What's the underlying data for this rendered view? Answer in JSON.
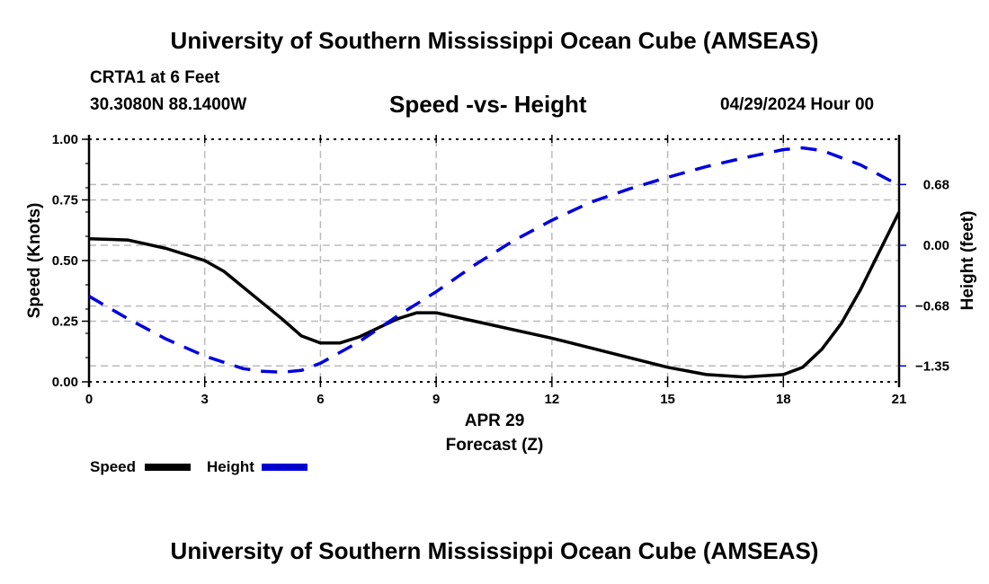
{
  "header": {
    "main_title": "University of Southern Mississippi Ocean Cube (AMSEAS)",
    "station": "CRTA1 at 6 Feet",
    "coordinates": "30.3080N  88.1400W",
    "plot_title": "Speed -vs- Height",
    "date": "04/29/2024 Hour 00"
  },
  "footer": {
    "bottom_title": "University of Southern Mississippi Ocean Cube (AMSEAS)"
  },
  "colors": {
    "speed": "#000000",
    "height": "#0000dd",
    "grid": "#bbbbbb"
  },
  "chart_data": {
    "type": "line",
    "title": "Speed -vs- Height",
    "xlabel": "Forecast (Z)",
    "xlabel_date": "APR 29",
    "ylabel": "Speed (Knots)",
    "y2label": "Height (feet)",
    "xlim": [
      0,
      21
    ],
    "ylim": [
      0,
      1.0
    ],
    "y2lim": [
      -1.528,
      1.186
    ],
    "x_ticks": [
      0,
      3,
      6,
      9,
      12,
      15,
      18,
      21
    ],
    "x_tick_labels": [
      "0",
      "3",
      "6",
      "9",
      "12",
      "15",
      "18",
      "21"
    ],
    "y_ticks": [
      0.0,
      0.25,
      0.5,
      0.75,
      1.0
    ],
    "y_tick_labels": [
      "0.00",
      "0.25",
      "0.50",
      "0.75",
      "1.00"
    ],
    "y2_ticks": [
      0.68,
      0.0,
      -0.68,
      -1.35
    ],
    "y2_tick_labels": [
      "0.68",
      "0.00",
      "−0.68",
      "−1.35"
    ],
    "grid": true,
    "legend_position": "bottom-left",
    "series": [
      {
        "name": "Speed",
        "axis": "left",
        "style": "solid",
        "x": [
          0,
          1,
          2,
          3,
          3.5,
          4,
          5,
          5.5,
          6,
          6.5,
          7,
          8,
          8.5,
          9,
          10,
          12,
          15,
          16,
          17,
          18,
          18.5,
          19,
          19.5,
          20,
          20.5,
          21
        ],
        "values": [
          0.59,
          0.585,
          0.55,
          0.5,
          0.455,
          0.39,
          0.26,
          0.19,
          0.16,
          0.16,
          0.185,
          0.26,
          0.285,
          0.285,
          0.25,
          0.18,
          0.06,
          0.03,
          0.02,
          0.03,
          0.06,
          0.135,
          0.24,
          0.38,
          0.54,
          0.7
        ]
      },
      {
        "name": "Height",
        "axis": "right",
        "style": "dashed",
        "x": [
          0,
          1,
          2,
          3,
          4,
          4.5,
          5,
          5.5,
          6,
          7,
          8,
          9,
          10,
          11,
          12,
          13,
          14,
          15,
          16,
          17,
          18,
          18.5,
          19,
          20,
          21
        ],
        "values": [
          -0.57,
          -0.82,
          -1.05,
          -1.24,
          -1.38,
          -1.41,
          -1.42,
          -1.4,
          -1.32,
          -1.08,
          -0.79,
          -0.52,
          -0.22,
          0.05,
          0.28,
          0.48,
          0.63,
          0.76,
          0.88,
          0.98,
          1.07,
          1.09,
          1.06,
          0.9,
          0.67
        ]
      }
    ]
  }
}
